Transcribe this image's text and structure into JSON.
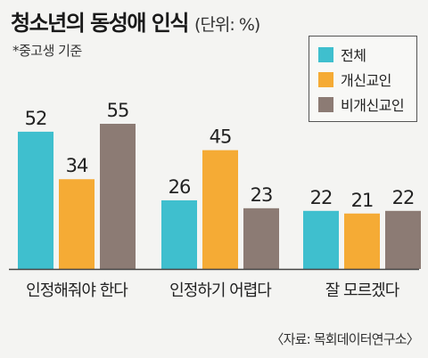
{
  "header": {
    "title": "청소년의 동성애 인식",
    "unit": "(단위: %)",
    "subtitle": "*중고생 기준"
  },
  "source": "〈자료: 목회데이터연구소〉",
  "chart_data": {
    "type": "bar",
    "categories": [
      "인정해줘야 한다",
      "인정하기 어렵다",
      "잘 모르겠다"
    ],
    "series": [
      {
        "name": "전체",
        "values": [
          52,
          26,
          22
        ],
        "color": "#3fbfce"
      },
      {
        "name": "개신교인",
        "values": [
          34,
          45,
          21
        ],
        "color": "#f5ab35"
      },
      {
        "name": "비개신교인",
        "values": [
          55,
          23,
          22
        ],
        "color": "#8c7b74"
      }
    ],
    "ylim": [
      0,
      60
    ],
    "grid": false,
    "legend_position": "top-right"
  }
}
